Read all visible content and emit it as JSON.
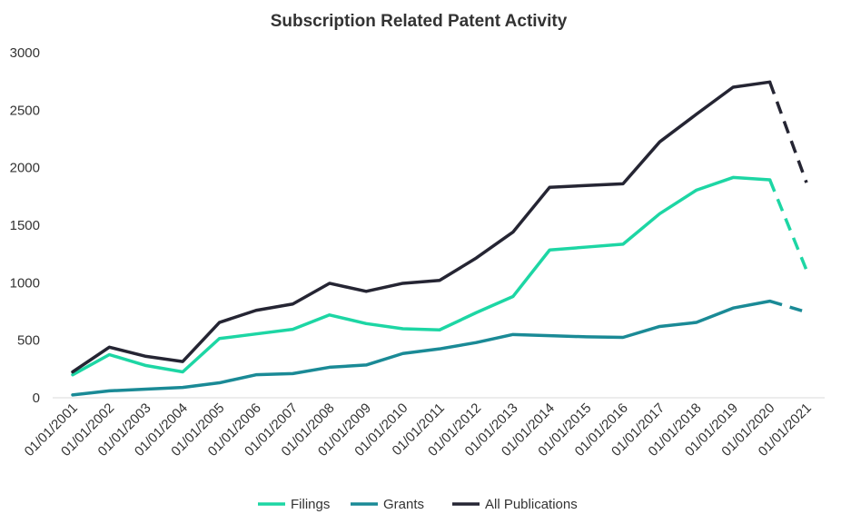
{
  "chart_data": {
    "type": "line",
    "title": "Subscription Related Patent Activity",
    "xlabel": "",
    "ylabel": "",
    "ylim": [
      0,
      3000
    ],
    "yticks": [
      "0",
      "500",
      "1000",
      "1500",
      "2000",
      "2500",
      "3000"
    ],
    "categories": [
      "01/01/2001",
      "01/01/2002",
      "01/01/2003",
      "01/01/2004",
      "01/01/2005",
      "01/01/2006",
      "01/01/2007",
      "01/01/2008",
      "01/01/2009",
      "01/01/2010",
      "01/01/2011",
      "01/01/2012",
      "01/01/2013",
      "01/01/2014",
      "01/01/2015",
      "01/01/2016",
      "01/01/2017",
      "01/01/2018",
      "01/01/2019",
      "01/01/2020",
      "01/01/2021"
    ],
    "grid": false,
    "legend_position": "bottom",
    "projected_from_index": 19,
    "series": [
      {
        "name": "Filings",
        "color": "#1dd6a4",
        "values": [
          200,
          375,
          280,
          225,
          515,
          555,
          595,
          720,
          645,
          600,
          590,
          740,
          880,
          1285,
          1310,
          1335,
          1600,
          1805,
          1915,
          1895,
          1110
        ]
      },
      {
        "name": "Grants",
        "color": "#1a8a96",
        "values": [
          25,
          60,
          75,
          90,
          130,
          200,
          210,
          265,
          285,
          385,
          425,
          480,
          550,
          540,
          530,
          525,
          620,
          655,
          780,
          840,
          745
        ]
      },
      {
        "name": "All Publications",
        "color": "#252533",
        "values": [
          225,
          440,
          360,
          315,
          655,
          760,
          815,
          995,
          925,
          995,
          1020,
          1215,
          1440,
          1830,
          1845,
          1860,
          2225,
          2465,
          2700,
          2745,
          1870
        ]
      }
    ]
  }
}
